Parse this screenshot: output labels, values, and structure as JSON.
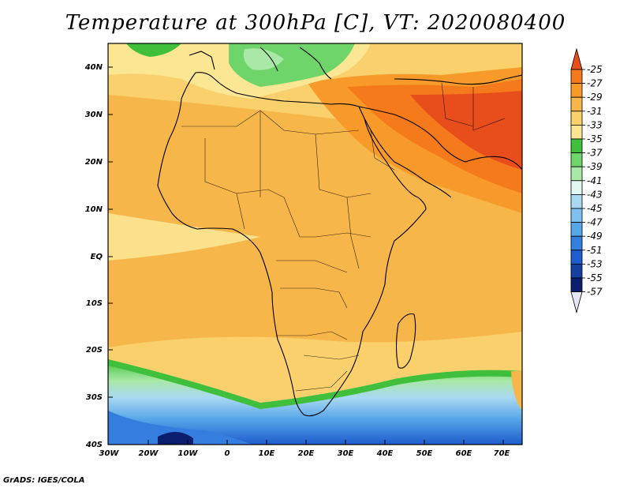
{
  "title": "Temperature at 300hPa [C], VT: 2020080400",
  "footer": "GrADS: IGES/COLA",
  "map": {
    "lon_range": [
      -30,
      75
    ],
    "lat_range": [
      -40,
      45
    ],
    "lat_labels": [
      "40N",
      "30N",
      "20N",
      "10N",
      "EQ",
      "10S",
      "20S",
      "30S",
      "40S"
    ],
    "lon_labels": [
      "30W",
      "20W",
      "10W",
      "0",
      "10E",
      "20E",
      "30E",
      "40E",
      "50E",
      "60E",
      "70E"
    ]
  },
  "colorbar": {
    "labels": [
      "-25",
      "-27",
      "-29",
      "-31",
      "-33",
      "-35",
      "-37",
      "-39",
      "-41",
      "-43",
      "-45",
      "-47",
      "-49",
      "-51",
      "-53",
      "-55",
      "-57"
    ],
    "colors": [
      "#e84d1c",
      "#f47a1c",
      "#f79a29",
      "#f7b64a",
      "#f9d06c",
      "#fbe694",
      "#3fbf3c",
      "#6fd46a",
      "#a9e8a6",
      "#e1f7ef",
      "#a9d8f2",
      "#7fc0ee",
      "#57a6e8",
      "#357ee0",
      "#1f5ccf",
      "#15409f",
      "#0b1f6e"
    ]
  }
}
